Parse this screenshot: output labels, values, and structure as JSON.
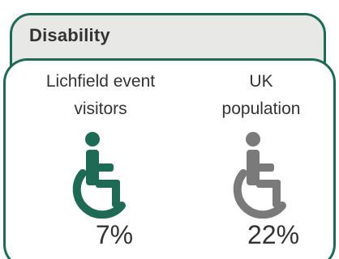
{
  "title": "Disability",
  "groups": [
    {
      "label": "Lichfield event\nvisitors",
      "percent": "7%",
      "icon": "wheelchair-icon",
      "color": "#1e6a55"
    },
    {
      "label": "UK\npopulation",
      "percent": "22%",
      "icon": "wheelchair-icon",
      "color": "#7a7a7a"
    }
  ],
  "colors": {
    "accent": "#1e6a55",
    "panel_bg": "#e8e9e7",
    "text": "#333333",
    "muted_icon": "#7a7a7a"
  }
}
